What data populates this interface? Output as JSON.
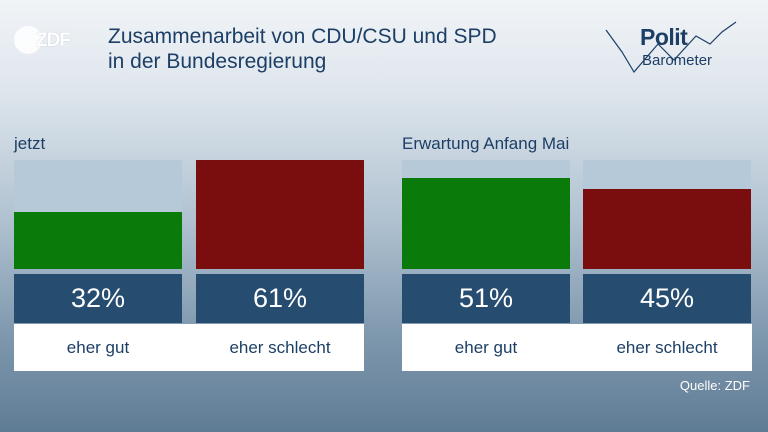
{
  "logo": {
    "text": "ZDF"
  },
  "title": {
    "line1": "Zusammenarbeit von CDU/CSU und SPD",
    "line2": "in der Bundesregierung"
  },
  "badge": {
    "top": "Polit",
    "bottom": "Barometer"
  },
  "source": "Quelle: ZDF",
  "colors": {
    "positive": "#0a7a0a",
    "negative": "#7a0d0d",
    "track": "#b6c9d8",
    "value_box": "#264d70",
    "text": "#1d3f66"
  },
  "chart_data": {
    "type": "bar",
    "ylim": [
      0,
      100
    ],
    "groups": [
      {
        "name": "jetzt",
        "bars": [
          {
            "category": "eher gut",
            "value": 32,
            "value_label": "32%",
            "color": "#0a7a0a"
          },
          {
            "category": "eher schlecht",
            "value": 61,
            "value_label": "61%",
            "color": "#7a0d0d"
          }
        ]
      },
      {
        "name": "Erwartung Anfang Mai",
        "bars": [
          {
            "category": "eher gut",
            "value": 51,
            "value_label": "51%",
            "color": "#0a7a0a"
          },
          {
            "category": "eher schlecht",
            "value": 45,
            "value_label": "45%",
            "color": "#7a0d0d"
          }
        ]
      }
    ]
  }
}
